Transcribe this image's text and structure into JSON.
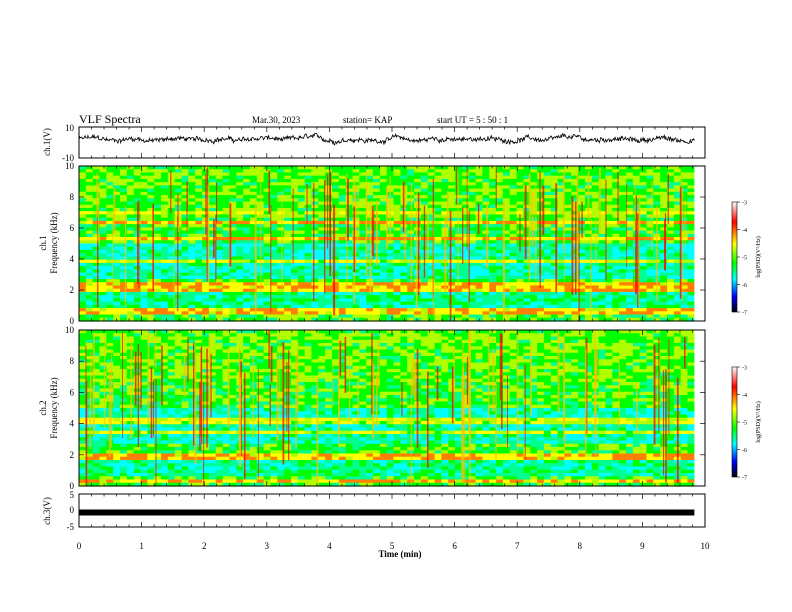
{
  "header": {
    "title": "VLF Spectra",
    "date": "Mar.30, 2023",
    "station": "station= KAP",
    "start_ut": "start  UT =   5  : 50 : 1"
  },
  "chart_data": [
    {
      "id": "ch1-waveform",
      "type": "line",
      "ylabel": "ch.1(V)",
      "ylim": [
        -10,
        10
      ],
      "yticks": [
        "10",
        "-10"
      ],
      "xlim": [
        0,
        10
      ],
      "x_end": 9.83,
      "baseline": 2.0,
      "amplitude": 2.6,
      "color": "#000000"
    },
    {
      "id": "ch1-spectrogram",
      "type": "heatmap",
      "ylabel": "ch.1\nFrequency  (kHz)",
      "ylim": [
        0,
        10
      ],
      "yticks": [
        "0",
        "2",
        "4",
        "6",
        "8",
        "10"
      ],
      "xlim": [
        0,
        10
      ],
      "x_end": 9.83,
      "colorbar": {
        "label": "log(PSD)(V²/Hz)",
        "ticks": [
          "-3",
          "-4",
          "-5",
          "-6",
          "-7"
        ],
        "range": [
          -7,
          -3
        ],
        "colors": [
          "#ffffff",
          "#ff0000",
          "#ffff00",
          "#00ff00",
          "#00ffff",
          "#0000ff",
          "#000000"
        ]
      },
      "bands": [
        {
          "freq": 0.6,
          "level": "high"
        },
        {
          "freq": 2.1,
          "level": "high"
        },
        {
          "freq": 2.4,
          "level": "high"
        },
        {
          "freq": 3.8,
          "level": "medium"
        },
        {
          "freq": 5.3,
          "level": "high"
        },
        {
          "freq": 6.4,
          "level": "high"
        },
        {
          "freq": 7.0,
          "level": "medium"
        }
      ]
    },
    {
      "id": "ch2-spectrogram",
      "type": "heatmap",
      "ylabel": "ch.2\nFrequency  (kHz)",
      "ylim": [
        0,
        10
      ],
      "yticks": [
        "0",
        "2",
        "4",
        "6",
        "8",
        "10"
      ],
      "xlim": [
        0,
        10
      ],
      "x_end": 9.83,
      "colorbar": {
        "label": "log(PSD)(V²/Hz)",
        "ticks": [
          "-3",
          "-4",
          "-5",
          "-6",
          "-7"
        ],
        "range": [
          -7,
          -3
        ],
        "colors": [
          "#ffffff",
          "#ff0000",
          "#ffff00",
          "#00ff00",
          "#00ffff",
          "#0000ff",
          "#000000"
        ]
      },
      "bands": [
        {
          "freq": 0.3,
          "level": "high"
        },
        {
          "freq": 1.9,
          "level": "high"
        },
        {
          "freq": 3.4,
          "level": "medium"
        },
        {
          "freq": 4.2,
          "level": "medium"
        }
      ]
    },
    {
      "id": "ch3-waveform",
      "type": "line",
      "ylabel": "ch.3(V)",
      "ylim": [
        -5,
        5
      ],
      "yticks": [
        "5",
        "0",
        "-5"
      ],
      "xlim": [
        0,
        10
      ],
      "x_end": 9.83,
      "baseline": 0,
      "amplitude": 0.3,
      "xlabel": "Time  (min)",
      "xticks": [
        "0",
        "1",
        "2",
        "3",
        "4",
        "5",
        "6",
        "7",
        "8",
        "9",
        "10"
      ],
      "color": "#000000"
    }
  ]
}
